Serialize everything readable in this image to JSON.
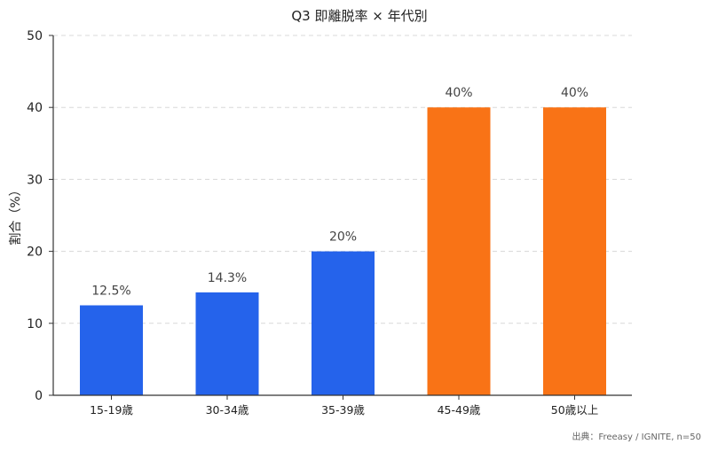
{
  "chart_data": {
    "type": "bar",
    "title": "Q3 即離脱率 × 年代別",
    "xlabel": "",
    "ylabel": "割合（%）",
    "ylim": [
      0,
      50
    ],
    "yticks": [
      0,
      10,
      20,
      30,
      40,
      50
    ],
    "grid": "horizontal dashed",
    "categories": [
      "15-19歳",
      "30-34歳",
      "35-39歳",
      "45-49歳",
      "50歳以上"
    ],
    "values": [
      12.5,
      14.3,
      20,
      40,
      40
    ],
    "data_labels": [
      "12.5%",
      "14.3%",
      "20%",
      "40%",
      "40%"
    ],
    "bar_colors": [
      "#2563eb",
      "#2563eb",
      "#2563eb",
      "#f97316",
      "#f97316"
    ],
    "source": "出典：Freeasy / IGNITE, n=50"
  }
}
